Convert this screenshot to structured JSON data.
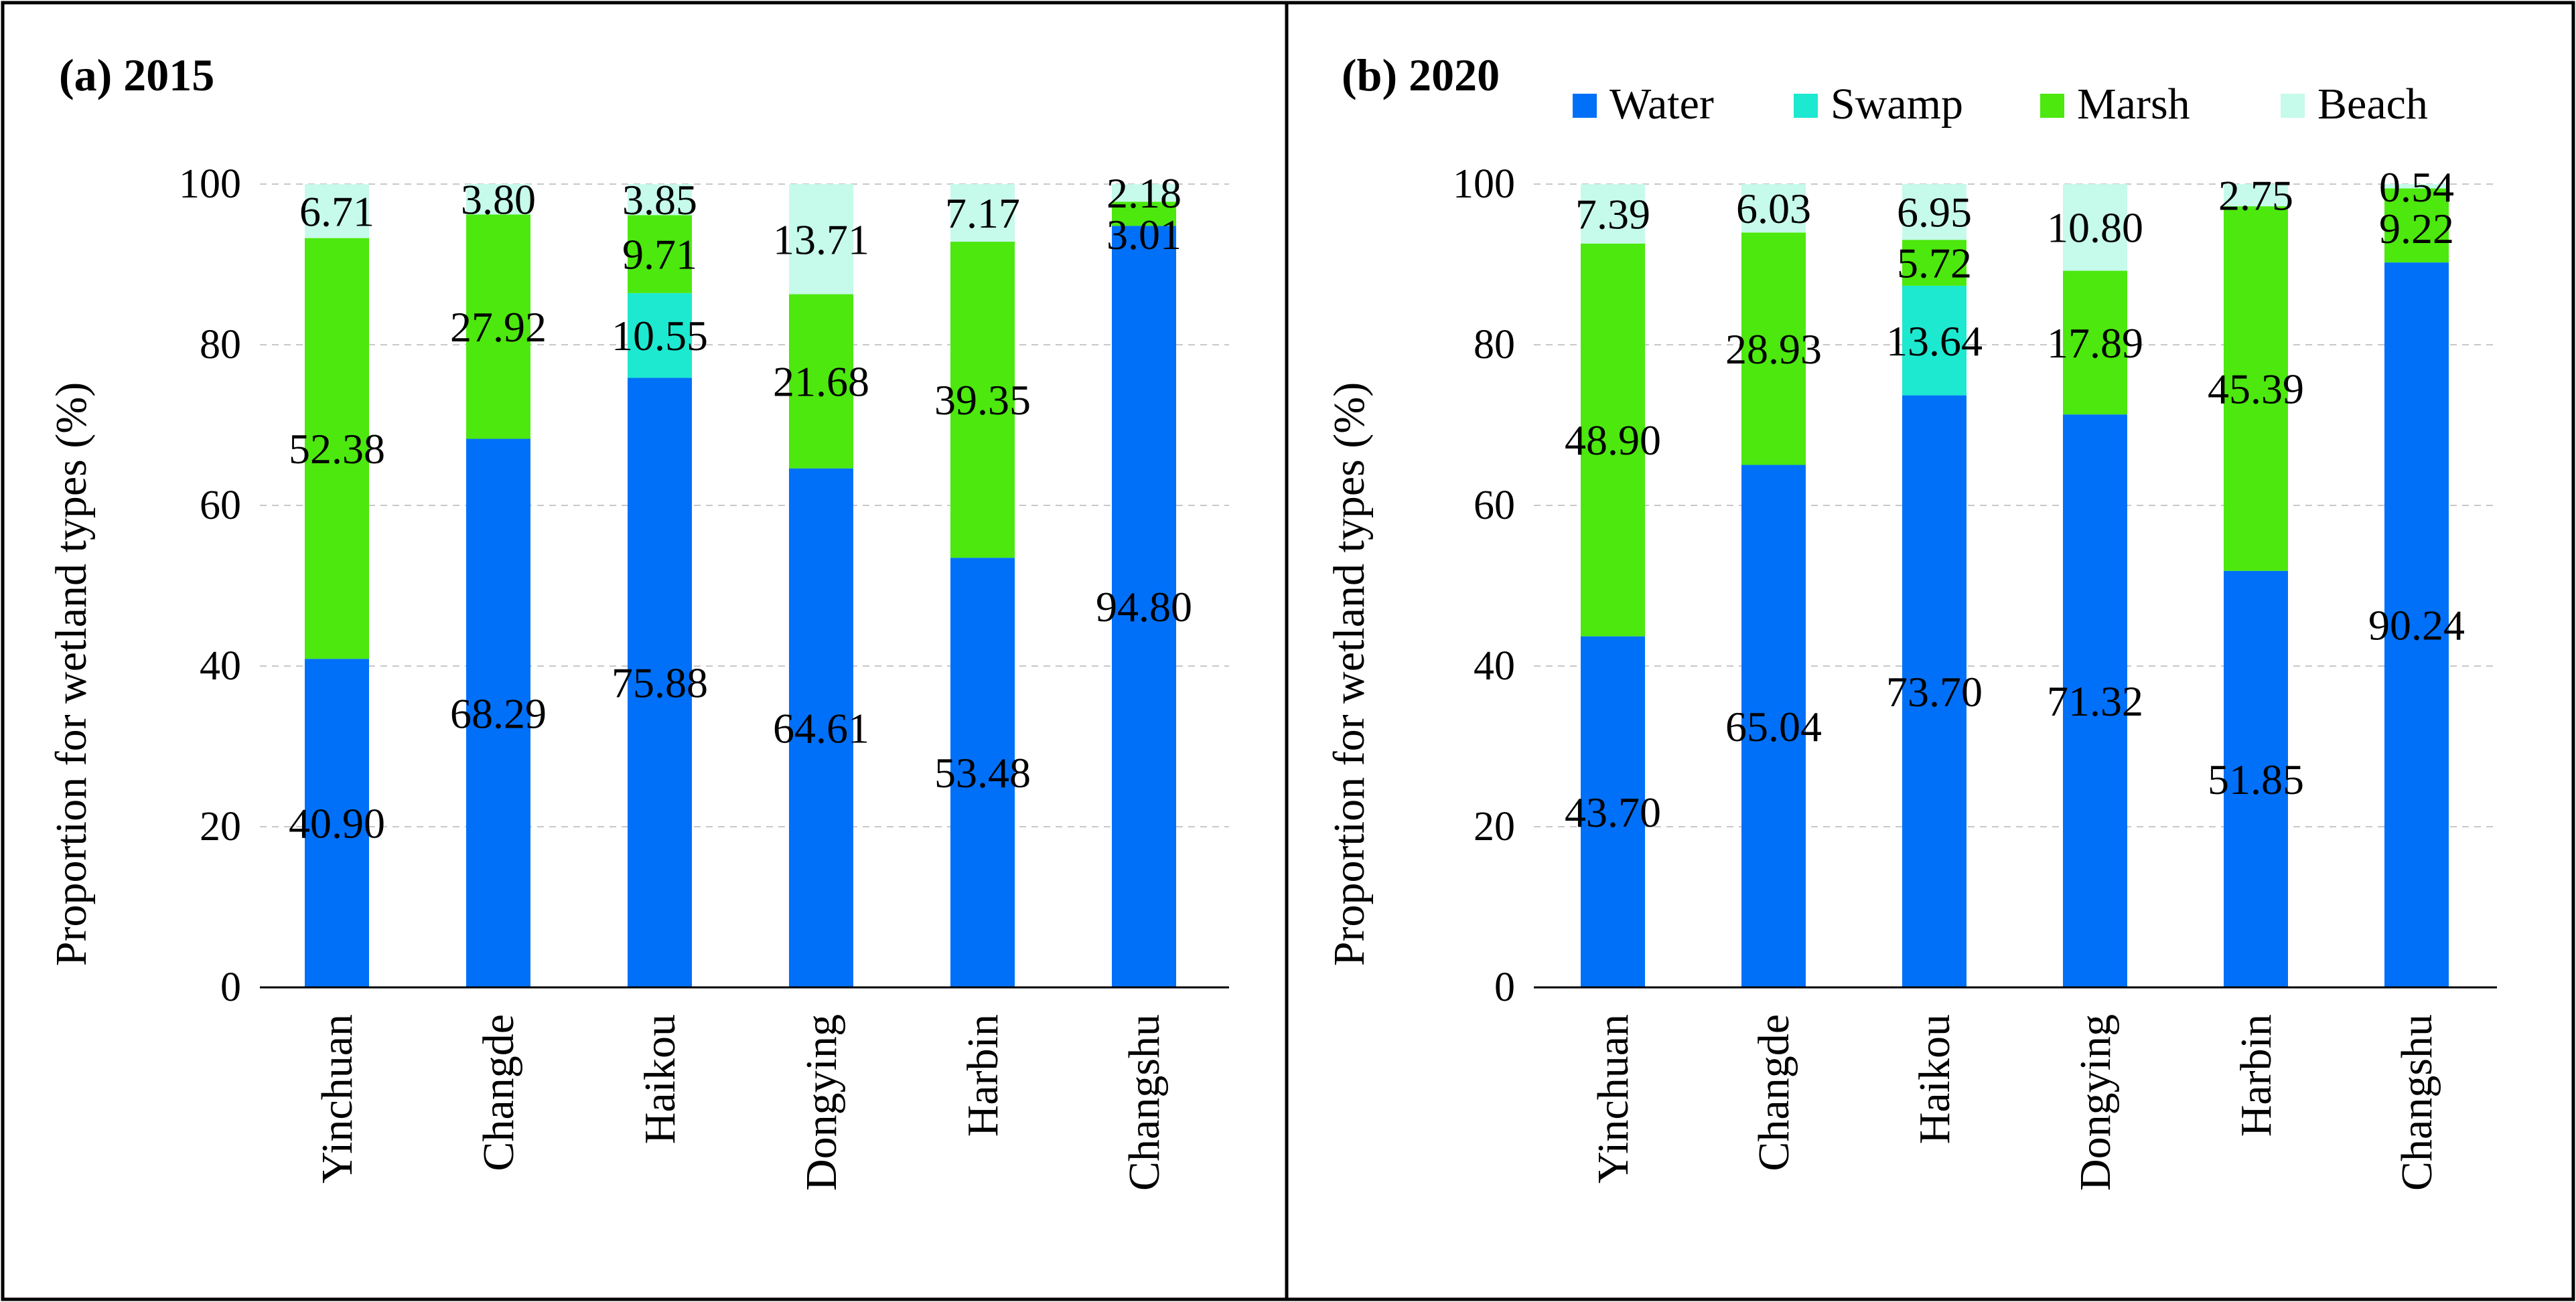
{
  "colors": {
    "Water": "#0070F8",
    "Swamp": "#1DE8D0",
    "Marsh": "#4CE80E",
    "Beach": "#C6FAEB",
    "grid": "#C8C8C8",
    "frame": "#000000"
  },
  "legend": [
    "Water",
    "Swamp",
    "Marsh",
    "Beach"
  ],
  "chart_data": [
    {
      "type": "bar",
      "stacked": true,
      "title": "(a) 2015",
      "xlabel": "",
      "ylabel": "Proportion for wetland types (%)",
      "ylim": [
        0,
        100
      ],
      "yticks": [
        0,
        20,
        40,
        60,
        80,
        100
      ],
      "grid": true,
      "categories": [
        "Yinchuan",
        "Changde",
        "Haikou",
        "Dongying",
        "Harbin",
        "Changshu"
      ],
      "series": [
        {
          "name": "Water",
          "values": [
            40.9,
            68.29,
            75.88,
            64.61,
            53.48,
            94.8
          ],
          "labels": [
            "40.90",
            "68.29",
            "75.88",
            "64.61",
            "53.48",
            "94.80"
          ]
        },
        {
          "name": "Swamp",
          "values": [
            0,
            0,
            10.55,
            0,
            0,
            0
          ],
          "labels": [
            "",
            "",
            "10.55",
            "",
            "",
            ""
          ]
        },
        {
          "name": "Marsh",
          "values": [
            52.38,
            27.92,
            9.71,
            21.68,
            39.35,
            3.01
          ],
          "labels": [
            "52.38",
            "27.92",
            "9.71",
            "21.68",
            "39.35",
            "3.01"
          ]
        },
        {
          "name": "Beach",
          "values": [
            6.71,
            3.8,
            3.85,
            13.71,
            7.17,
            2.18
          ],
          "labels": [
            "6.71",
            "3.80",
            "3.85",
            "13.71",
            "7.17",
            "2.18"
          ]
        }
      ]
    },
    {
      "type": "bar",
      "stacked": true,
      "title": "(b) 2020",
      "xlabel": "",
      "ylabel": "Proportion for wetland types (%)",
      "ylim": [
        0,
        100
      ],
      "yticks": [
        0,
        20,
        40,
        60,
        80,
        100
      ],
      "grid": true,
      "legend_position": "top-right",
      "categories": [
        "Yinchuan",
        "Changde",
        "Haikou",
        "Dongying",
        "Harbin",
        "Changshu"
      ],
      "series": [
        {
          "name": "Water",
          "values": [
            43.7,
            65.04,
            73.7,
            71.32,
            51.85,
            90.24
          ],
          "labels": [
            "43.70",
            "65.04",
            "73.70",
            "71.32",
            "51.85",
            "90.24"
          ]
        },
        {
          "name": "Swamp",
          "values": [
            0,
            0,
            13.64,
            0,
            0,
            0
          ],
          "labels": [
            "",
            "",
            "13.64",
            "",
            "",
            ""
          ]
        },
        {
          "name": "Marsh",
          "values": [
            48.9,
            28.93,
            5.72,
            17.89,
            45.39,
            9.22
          ],
          "labels": [
            "48.90",
            "28.93",
            "5.72",
            "17.89",
            "45.39",
            "9.22"
          ]
        },
        {
          "name": "Beach",
          "values": [
            7.39,
            6.03,
            6.95,
            10.8,
            2.75,
            0.54
          ],
          "labels": [
            "7.39",
            "6.03",
            "6.95",
            "10.80",
            "2.75",
            "0.54"
          ]
        }
      ]
    }
  ]
}
